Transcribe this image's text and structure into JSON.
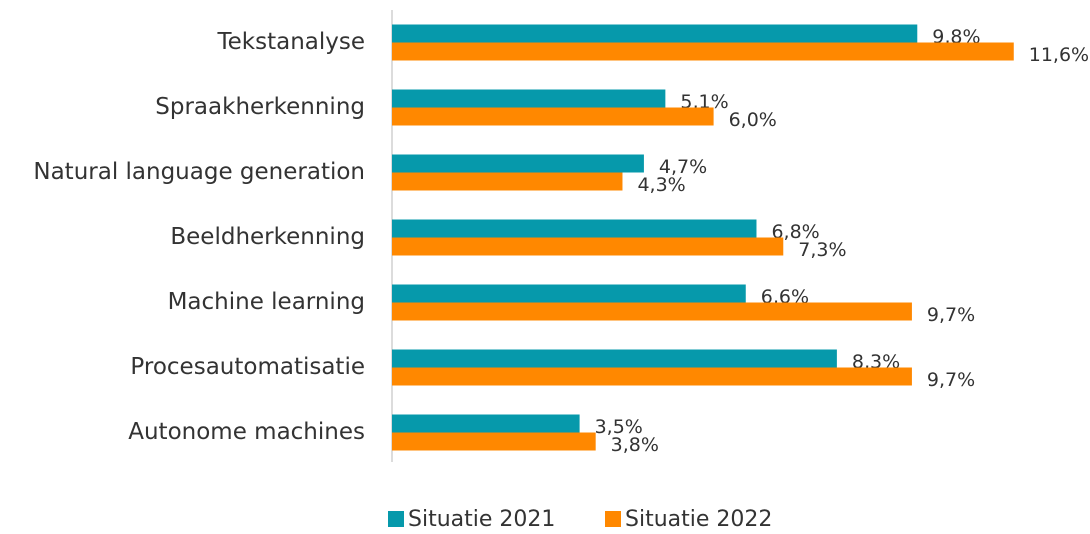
{
  "chart_data": {
    "type": "barh",
    "categories": [
      "Tekstanalyse",
      "Spraakherkenning",
      "Natural language generation",
      "Beeldherkenning",
      "Machine learning",
      "Procesautomatisatie",
      "Autonome machines"
    ],
    "series": [
      {
        "name": "Situatie 2021",
        "color": "#0699ab",
        "values": [
          9.8,
          5.1,
          4.7,
          6.8,
          6.6,
          8.3,
          3.5
        ],
        "value_labels": [
          "9,8%",
          "5,1%",
          "4,7%",
          "6,8%",
          "6,6%",
          "8,3%",
          "3,5%"
        ]
      },
      {
        "name": "Situatie 2022",
        "color": "#ff8800",
        "values": [
          11.6,
          6.0,
          4.3,
          7.3,
          9.7,
          9.7,
          3.8
        ],
        "value_labels": [
          "11,6%",
          "6,0%",
          "4,3%",
          "7,3%",
          "9,7%",
          "9,7%",
          "3,8%"
        ]
      }
    ],
    "legend": "bottom"
  }
}
